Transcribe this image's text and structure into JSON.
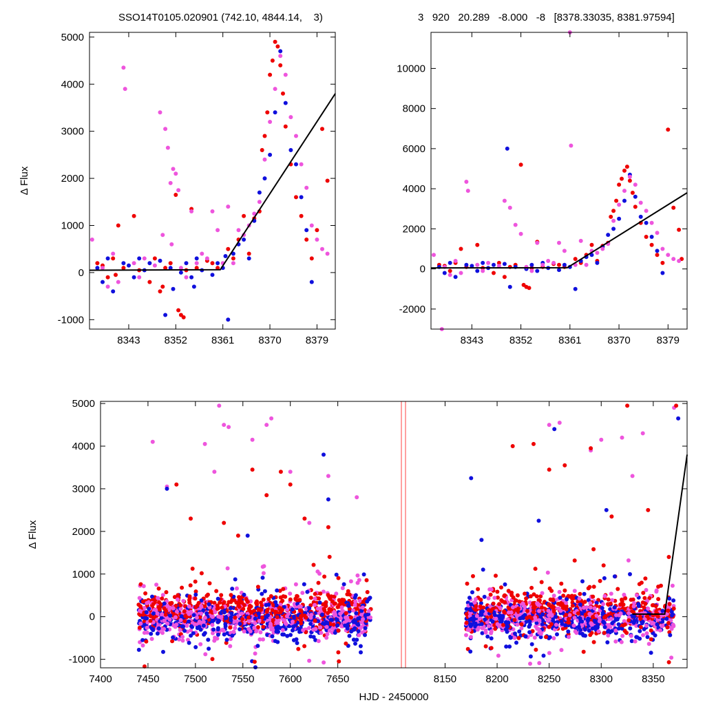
{
  "header": {
    "left_title": "SSO14T0105.020901 (742.10, 4844.14,    3)",
    "right_title": "3   920   20.289   -8.000   -8   [8378.33035, 8381.97594]"
  },
  "colors": {
    "red": "#ee0000",
    "blue": "#1010dd",
    "magenta": "#ee55dd",
    "fit": "#000000",
    "gap_marker": "#ff8080"
  },
  "chart_data": [
    {
      "id": "zoom-left",
      "type": "scatter",
      "title": "SSO14T0105.020901 (742.10, 4844.14,    3)",
      "xlabel": "",
      "ylabel": "Δ Flux",
      "xlim": [
        8335.5,
        8382.5
      ],
      "ylim": [
        -1200,
        5100
      ],
      "xticks": [
        8343,
        8352,
        8361,
        8370,
        8379
      ],
      "yticks": [
        -1000,
        0,
        1000,
        2000,
        3000,
        4000,
        5000
      ],
      "fit_line": {
        "x": [
          8335.5,
          8360.5,
          8382.5
        ],
        "y": [
          50,
          60,
          3800
        ]
      },
      "series": [
        {
          "color": "red",
          "x": [
            8337,
            8338,
            8339,
            8340,
            8341,
            8342,
            8344,
            8345,
            8347,
            8348,
            8349,
            8350,
            8351,
            8352,
            8353,
            8354,
            8355,
            8356,
            8358,
            8359,
            8360,
            8362,
            8363,
            8364,
            8365,
            8366,
            8367,
            8368,
            8368.5,
            8369,
            8369.5,
            8370,
            8370.5,
            8371,
            8371.5,
            8372,
            8372.5,
            8373,
            8374,
            8375,
            8376,
            8377,
            8378,
            8379,
            8380,
            8381,
            8340.5,
            8349.5,
            8352.5,
            8353.5
          ],
          "y": [
            200,
            150,
            -100,
            300,
            1000,
            100,
            1200,
            50,
            -200,
            300,
            -400,
            100,
            200,
            1650,
            -900,
            50,
            1350,
            100,
            250,
            200,
            100,
            500,
            300,
            700,
            1200,
            400,
            1150,
            1300,
            2600,
            2900,
            3400,
            4200,
            4500,
            4900,
            4800,
            4400,
            3800,
            3100,
            2300,
            1600,
            1200,
            700,
            300,
            900,
            3050,
            1950,
            -50,
            -300,
            -800,
            -950
          ]
        },
        {
          "color": "blue",
          "x": [
            8337,
            8338,
            8339,
            8340,
            8342,
            8343,
            8344,
            8345,
            8346,
            8347,
            8349,
            8350,
            8351,
            8353,
            8354,
            8355,
            8356,
            8357,
            8359,
            8360,
            8361,
            8362,
            8363,
            8364,
            8365,
            8366,
            8367,
            8368,
            8369,
            8370,
            8371,
            8372,
            8373,
            8374,
            8375,
            8376,
            8377,
            8378,
            8361.5,
            8351.5,
            8355.5
          ],
          "y": [
            100,
            -200,
            300,
            -400,
            200,
            150,
            -100,
            300,
            50,
            200,
            250,
            -900,
            100,
            0,
            200,
            -100,
            300,
            50,
            -50,
            200,
            100,
            -1000,
            400,
            600,
            700,
            300,
            1100,
            1700,
            2000,
            2500,
            3400,
            4700,
            3600,
            2600,
            2300,
            1600,
            900,
            -200,
            350,
            -350,
            -300
          ]
        },
        {
          "color": "magenta",
          "x": [
            8336,
            8338,
            8339,
            8340,
            8341,
            8342,
            8342.3,
            8344,
            8345,
            8346,
            8348,
            8349,
            8350,
            8350.5,
            8351,
            8351.5,
            8352,
            8352.5,
            8353,
            8354,
            8355,
            8356,
            8357,
            8358,
            8359,
            8360,
            8361,
            8362,
            8363,
            8364,
            8365,
            8366,
            8367,
            8368,
            8369,
            8370,
            8371,
            8372,
            8373,
            8374,
            8375,
            8376,
            8377,
            8378,
            8379,
            8380,
            8381,
            8349.5,
            8351.2
          ],
          "y": [
            700,
            100,
            -300,
            400,
            -200,
            4350,
            3900,
            200,
            -100,
            300,
            150,
            3400,
            3050,
            2650,
            1900,
            2200,
            2100,
            1750,
            100,
            -100,
            1300,
            200,
            400,
            300,
            1300,
            900,
            200,
            1400,
            200,
            900,
            800,
            1000,
            1250,
            1500,
            2400,
            3200,
            3900,
            4600,
            4200,
            3300,
            2900,
            2300,
            1800,
            1000,
            700,
            500,
            400,
            800,
            600
          ]
        }
      ]
    },
    {
      "id": "zoom-right",
      "type": "scatter",
      "title": "3   920   20.289   -8.000   -8   [8378.33035, 8381.97594]",
      "xlabel": "",
      "ylabel": "",
      "xlim": [
        8335.5,
        8382.5
      ],
      "ylim": [
        -3000,
        11800
      ],
      "xticks": [
        8343,
        8352,
        8361,
        8370,
        8379
      ],
      "yticks": [
        -2000,
        0,
        2000,
        4000,
        6000,
        8000,
        10000
      ],
      "fit_line": {
        "x": [
          8335.5,
          8360.5,
          8382.5
        ],
        "y": [
          50,
          60,
          3800
        ]
      },
      "series": [
        {
          "color": "red",
          "x": [
            8337,
            8338,
            8339,
            8340,
            8341,
            8342,
            8344,
            8345,
            8347,
            8348,
            8349,
            8350,
            8351,
            8352,
            8353,
            8354,
            8355,
            8356,
            8358,
            8359,
            8360,
            8362,
            8363,
            8364,
            8365,
            8366,
            8367,
            8368,
            8368.5,
            8369,
            8369.5,
            8370,
            8370.5,
            8371,
            8371.5,
            8372,
            8372.5,
            8373,
            8374,
            8375,
            8376,
            8377,
            8378,
            8379,
            8380,
            8381,
            8352.5,
            8353.5,
            8381.5
          ],
          "y": [
            200,
            150,
            -100,
            300,
            1000,
            100,
            1200,
            50,
            -200,
            300,
            -400,
            100,
            200,
            5200,
            -900,
            50,
            1350,
            100,
            250,
            200,
            100,
            500,
            300,
            700,
            1200,
            400,
            1150,
            1300,
            2600,
            2900,
            3400,
            4200,
            4500,
            4900,
            5100,
            4400,
            3800,
            3100,
            2300,
            1600,
            1200,
            700,
            300,
            6950,
            3050,
            1950,
            -800,
            -950,
            500
          ]
        },
        {
          "color": "blue",
          "x": [
            8337,
            8338,
            8339,
            8340,
            8342,
            8343,
            8344,
            8345,
            8346,
            8347,
            8349,
            8350,
            8351,
            8353,
            8354,
            8355,
            8356,
            8357,
            8359,
            8360,
            8361,
            8362,
            8363,
            8364,
            8365,
            8366,
            8367,
            8368,
            8369,
            8370,
            8371,
            8372,
            8373,
            8374,
            8375,
            8376,
            8377,
            8378,
            8349.5
          ],
          "y": [
            100,
            -200,
            300,
            -400,
            200,
            150,
            -100,
            300,
            50,
            200,
            250,
            -900,
            100,
            0,
            200,
            -100,
            300,
            50,
            -50,
            200,
            100,
            -1000,
            400,
            600,
            700,
            300,
            1100,
            1700,
            2000,
            2500,
            3400,
            4700,
            3600,
            2600,
            2300,
            1600,
            900,
            -200,
            6000
          ]
        },
        {
          "color": "magenta",
          "x": [
            8336,
            8338,
            8339,
            8340,
            8341,
            8342,
            8342.3,
            8344,
            8345,
            8346,
            8348,
            8349,
            8350,
            8351,
            8352,
            8353,
            8354,
            8355,
            8356,
            8357,
            8358,
            8359,
            8360,
            8361,
            8361.2,
            8362,
            8363,
            8364,
            8365,
            8366,
            8367,
            8368,
            8369,
            8370,
            8371,
            8372,
            8373,
            8374,
            8375,
            8376,
            8377,
            8378,
            8379,
            8380,
            8381,
            8337.5
          ],
          "y": [
            700,
            100,
            -300,
            400,
            -200,
            4350,
            3900,
            200,
            -100,
            300,
            150,
            3400,
            3050,
            2200,
            1750,
            100,
            -100,
            1300,
            200,
            400,
            300,
            1300,
            900,
            11800,
            6150,
            200,
            1400,
            200,
            900,
            800,
            1000,
            1250,
            2400,
            3200,
            3900,
            4600,
            4200,
            3300,
            2900,
            2300,
            1800,
            1000,
            700,
            500,
            400,
            -3000
          ]
        }
      ]
    },
    {
      "id": "full-lightcurve",
      "type": "scatter",
      "title": "",
      "xlabel": "HJD - 2450000",
      "ylabel": "Δ Flux",
      "ylim": [
        -1200,
        5050
      ],
      "yticks": [
        -1000,
        0,
        1000,
        2000,
        3000,
        4000,
        5000
      ],
      "segments": [
        {
          "xlim": [
            7400,
            7717
          ],
          "xticks": [
            7400,
            7450,
            7500,
            7550,
            7600,
            7650
          ]
        },
        {
          "xlim": [
            8112,
            8382.5
          ],
          "xticks": [
            8150,
            8200,
            8250,
            8300,
            8350
          ]
        }
      ],
      "fit_line": {
        "x": [
          8330,
          8361,
          8382.5
        ],
        "y": [
          60,
          60,
          3800
        ]
      },
      "dense_band": {
        "season1": [
          7440,
          7685
        ],
        "season2": [
          8170,
          8370
        ],
        "mean": 0,
        "sigma": 220
      },
      "highlights": [
        {
          "color": "magenta",
          "x": [
            7455,
            7470,
            7510,
            7520,
            7525,
            7530,
            7535,
            7560,
            7575,
            7580,
            7600,
            7620,
            7640,
            7670,
            8250,
            8260,
            8290,
            8300,
            8320,
            8330,
            8340,
            8370
          ],
          "y": [
            4100,
            3050,
            4050,
            3400,
            4950,
            4500,
            4450,
            4150,
            4500,
            4650,
            3400,
            2200,
            3300,
            2800,
            4500,
            4550,
            3900,
            4150,
            4200,
            3300,
            4300,
            4900
          ]
        },
        {
          "color": "red",
          "x": [
            7480,
            7495,
            7530,
            7545,
            7560,
            7575,
            7590,
            7600,
            7615,
            7640,
            8215,
            8235,
            8250,
            8265,
            8290,
            8310,
            8325,
            8345,
            8365,
            8372
          ],
          "y": [
            3100,
            2300,
            2200,
            1900,
            3450,
            2850,
            3400,
            3100,
            2300,
            2100,
            4000,
            4050,
            3450,
            3550,
            3950,
            2350,
            4950,
            2500,
            1400,
            4950
          ]
        },
        {
          "color": "blue",
          "x": [
            7470,
            7555,
            7635,
            7640,
            8175,
            8185,
            8240,
            8255,
            8305,
            8374
          ],
          "y": [
            3000,
            1900,
            3800,
            2750,
            3250,
            1800,
            2250,
            4400,
            2500,
            4650
          ]
        }
      ]
    }
  ]
}
